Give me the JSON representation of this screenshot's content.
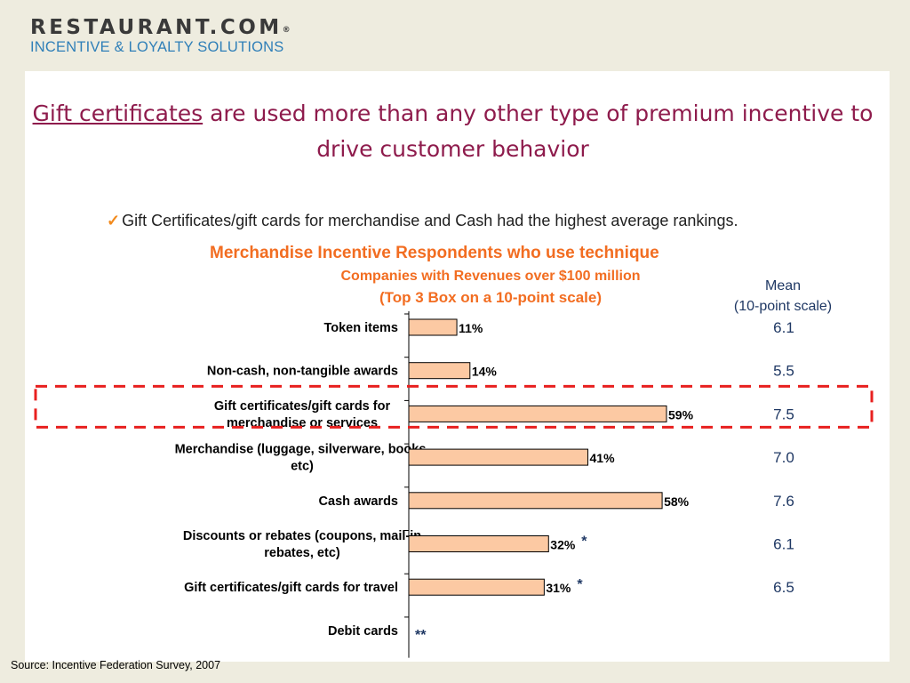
{
  "logo": {
    "main": "RESTAURANT.COM",
    "mark": "®",
    "sub": "INCENTIVE & LOYALTY SOLUTIONS"
  },
  "title": {
    "underlined": "Gift certificates",
    "rest": " are used more than any other type of premium incentive to drive customer behavior"
  },
  "checkpoint": {
    "icon": "checkmark-icon",
    "mark": "✓",
    "text": "Gift Certificates/gift cards for merchandise and Cash had the highest average rankings."
  },
  "chart_data": {
    "type": "bar",
    "orientation": "horizontal",
    "title": "Merchandise Incentive Respondents who use technique",
    "subtitle": "Companies with Revenues over $100 million",
    "subtitle2": "(Top 3 Box on a 10-point scale)",
    "categories": [
      "Token items",
      "Non-cash, non-tangible awards",
      "Gift certificates/gift cards for merchandise or services",
      "Merchandise (luggage, silverware, books, etc)",
      "Cash awards",
      "Discounts or rebates (coupons, mail-in rebates, etc)",
      "Gift certificates/gift cards for travel",
      "Debit cards"
    ],
    "category_lines": [
      [
        "Token items"
      ],
      [
        "Non-cash, non-tangible awards"
      ],
      [
        "Gift certificates/gift cards for",
        "merchandise or services"
      ],
      [
        "Merchandise (luggage, silverware, books,",
        "etc)"
      ],
      [
        "Cash awards"
      ],
      [
        "Discounts or rebates (coupons, mail-in",
        "rebates, etc)"
      ],
      [
        "Gift certificates/gift cards for travel"
      ],
      [
        "Debit cards"
      ]
    ],
    "values": [
      11,
      14,
      59,
      41,
      58,
      32,
      31,
      null
    ],
    "value_labels": [
      "11%",
      "14%",
      "59%",
      "41%",
      "58%",
      "32%",
      "31%",
      ""
    ],
    "markers": [
      "",
      "",
      "",
      "",
      "",
      "*",
      "*",
      "**"
    ],
    "xlim": [
      0,
      60
    ],
    "grid": false,
    "highlight_index": 2,
    "mean_header": [
      "Mean",
      "(10-point scale)"
    ],
    "means": [
      "6.1",
      "5.5",
      "7.5",
      "7.0",
      "7.6",
      "6.1",
      "6.5",
      ""
    ]
  },
  "colors": {
    "bar_fill": "#fcc9a3",
    "bar_stroke": "#000000",
    "highlight_box": "#e8201f",
    "title": "#8e1b4c",
    "subtitle": "#f26d21",
    "mean": "#1f3864",
    "logo_sub": "#2f7fb8",
    "checkmark": "#f28a1c",
    "background": "#eeecdf"
  },
  "source": "Source:  Incentive Federation Survey, 2007"
}
